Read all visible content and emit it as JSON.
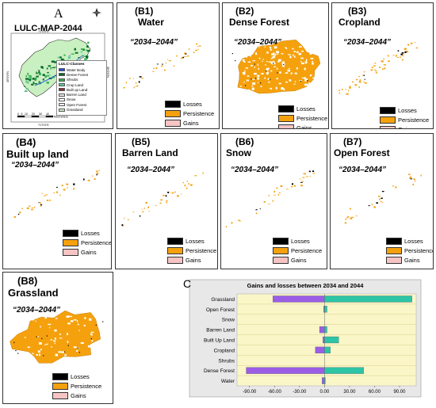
{
  "panelA": {
    "letter": "A",
    "title": "LULC-MAP-2044",
    "legend_title": "LULC-Classes",
    "classes": [
      {
        "name": "Water Body",
        "color": "#1f4fe0"
      },
      {
        "name": "Dense Forest",
        "color": "#0a6e2a"
      },
      {
        "name": "Shrubs",
        "color": "#2fb34a"
      },
      {
        "name": "Crop Land",
        "color": "#62c79a"
      },
      {
        "name": "Built up Land",
        "color": "#8c2d2d"
      },
      {
        "name": "Barren Land",
        "color": "#e9e2e2"
      },
      {
        "name": "Snow",
        "color": "#ffffff"
      },
      {
        "name": "Open Forest",
        "color": "#f2f2f2"
      },
      {
        "name": "Grassland",
        "color": "#c9f0c0"
      }
    ],
    "scale_ticks": [
      "0",
      "5",
      "10",
      "20",
      "30",
      "40"
    ],
    "scale_unit": "Kilometers",
    "coord_top": "71°0'0\"E",
    "coord_bottom": "71°0'0\"E",
    "coord_left": "35°0'0\"N",
    "coord_right": "35°0'0\"N"
  },
  "changePanels": [
    {
      "id": "B1",
      "code": "(B1)",
      "name": "Water",
      "period": "“2034–2044”",
      "density": 0.12
    },
    {
      "id": "B2",
      "code": "(B2)",
      "name": "Dense Forest",
      "period": "“2034–2044”",
      "density": 1.0
    },
    {
      "id": "B3",
      "code": "(B3)",
      "name": "Cropland",
      "period": "“2034–2044”",
      "density": 0.25
    },
    {
      "id": "B4",
      "code": "(B4)",
      "name": "Built up land",
      "period": "“2034–2044”",
      "density": 0.12
    },
    {
      "id": "B5",
      "code": "(B5)",
      "name": "Barren Land",
      "period": "“2034–2044”",
      "density": 0.1
    },
    {
      "id": "B6",
      "code": "(B6)",
      "name": "Snow",
      "period": "“2034–2044”",
      "density": 0.08
    },
    {
      "id": "B7",
      "code": "(B7)",
      "name": "Open Forest",
      "period": "“2034–2044”",
      "density": 0.06
    },
    {
      "id": "B8",
      "code": "(B8)",
      "name": "Grassland",
      "period": "“2034–2044”",
      "density": 1.0
    }
  ],
  "change_legend": [
    {
      "label": "Losses",
      "color": "#000000"
    },
    {
      "label": "Persistence",
      "color": "#f5a10e"
    },
    {
      "label": "Gains",
      "color": "#f7c4c4"
    }
  ],
  "panelC": {
    "letter": "C"
  },
  "chart_data": {
    "type": "bar",
    "orientation": "horizontal",
    "title": "Gains and losses between 2034 and 2044",
    "categories": [
      "Grassland",
      "Open Forest",
      "Snow",
      "Barren Land",
      "Built Up Land",
      "Cropland",
      "Shrubs",
      "Dense Forest",
      "Water"
    ],
    "series": [
      {
        "color": "#9b5de5",
        "values": [
          -62,
          -1,
          0,
          -6,
          -2,
          -11,
          0,
          -94,
          -3
        ]
      },
      {
        "color": "#2ec4a6",
        "values": [
          105,
          3,
          0,
          3,
          17,
          7,
          0,
          47,
          1
        ]
      }
    ],
    "xlim": [
      -105,
      110
    ],
    "xticks": [
      -90,
      -60,
      -30,
      0,
      30,
      60,
      90
    ],
    "xtick_labels": [
      "-90.00",
      "-60.00",
      "-30.00",
      "0.00",
      "30.00",
      "60.00",
      "90.00"
    ],
    "plot_background": "#fbf6c8",
    "grid": true
  }
}
